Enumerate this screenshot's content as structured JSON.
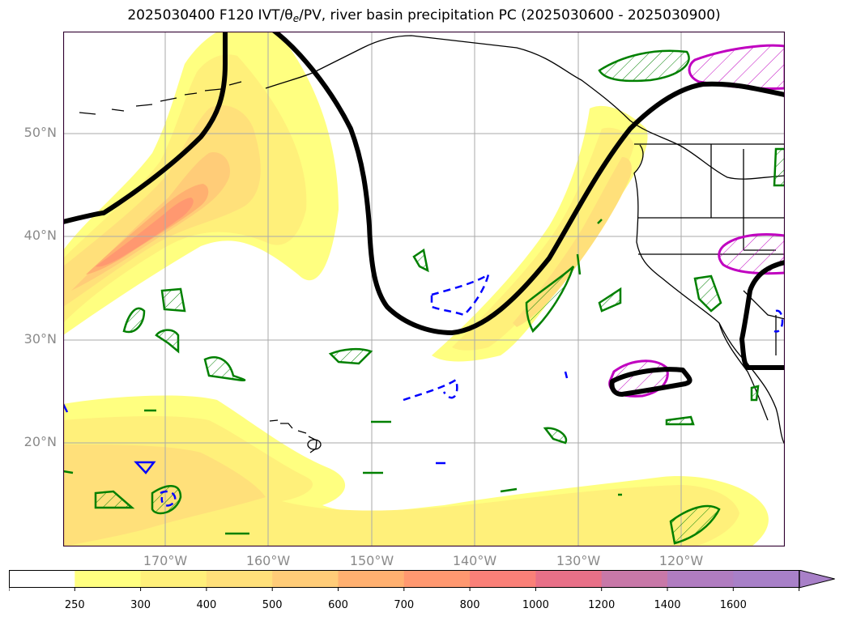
{
  "title": {
    "main": "2025030400 F120 IVT/",
    "theta": "θ",
    "sub": "e",
    "rest": "/PV, river basin precipitation PC (2025030600 - 2025030900)"
  },
  "latitude_labels": [
    "50°N",
    "40°N",
    "30°N",
    "20°N"
  ],
  "longitude_labels": [
    "170°W",
    "160°W",
    "150°W",
    "140°W",
    "130°W",
    "120°W"
  ],
  "colorbar": {
    "levels": [
      "250",
      "300",
      "400",
      "500",
      "600",
      "700",
      "800",
      "1000",
      "1200",
      "1400",
      "1600"
    ],
    "colors": [
      "#ffffff",
      "#ffff80",
      "#fff07a",
      "#ffe07a",
      "#ffcc78",
      "#ffb070",
      "#ff9870",
      "#fa8078",
      "#e87088",
      "#c878a8",
      "#b07cc0",
      "#a880c8"
    ],
    "extend": "max"
  },
  "colors": {
    "pv_contour": "#000000",
    "positive_pc_contour": "#008000",
    "negative_pc_contour": "#0000ff",
    "theta_contour": "#c000c0",
    "coastline": "#000000",
    "grid": "#aaaaaa"
  }
}
